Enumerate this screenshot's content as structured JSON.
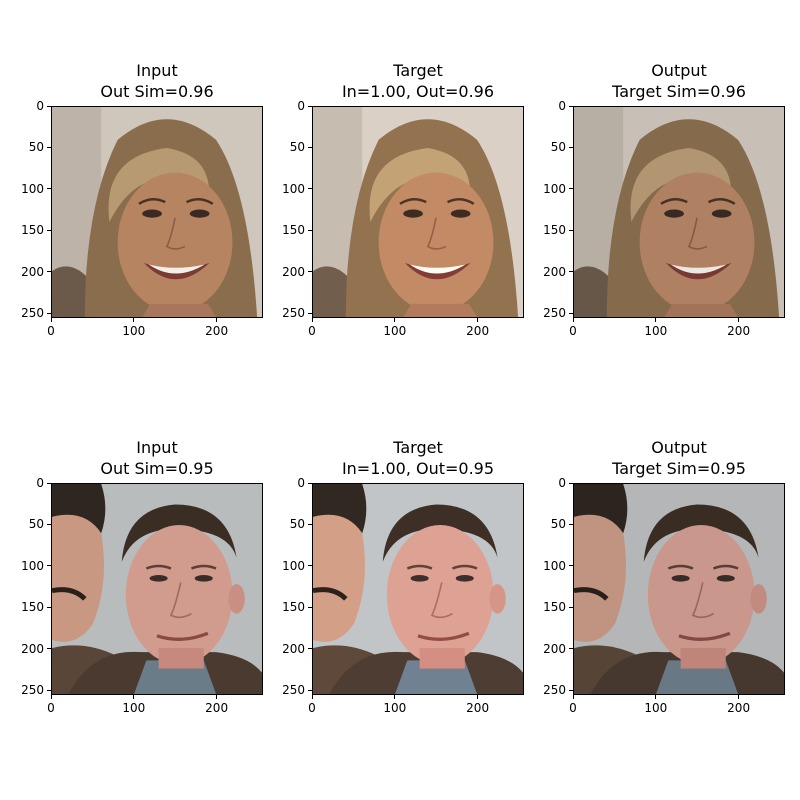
{
  "figure": {
    "panels": [
      {
        "title_line1": "Input",
        "title_line2": "Out Sim=0.96",
        "scene": "face-woman-smiling",
        "tone": "input"
      },
      {
        "title_line1": "Target",
        "title_line2": "In=1.00, Out=0.96",
        "scene": "face-woman-smiling",
        "tone": "target"
      },
      {
        "title_line1": "Output",
        "title_line2": "Target Sim=0.96",
        "scene": "face-woman-smiling",
        "tone": "output"
      },
      {
        "title_line1": "Input",
        "title_line2": "Out Sim=0.95",
        "scene": "face-man-with-friend",
        "tone": "input"
      },
      {
        "title_line1": "Target",
        "title_line2": "In=1.00, Out=0.95",
        "scene": "face-man-with-friend",
        "tone": "target"
      },
      {
        "title_line1": "Output",
        "title_line2": "Target Sim=0.95",
        "scene": "face-man-with-friend",
        "tone": "output"
      }
    ]
  },
  "chart_data": {
    "type": "image-grid",
    "rows": 2,
    "cols": 3,
    "x_ticks": [
      "0",
      "100",
      "200"
    ],
    "y_ticks": [
      "0",
      "50",
      "100",
      "150",
      "200",
      "250"
    ],
    "x_tick_values": [
      0,
      100,
      200
    ],
    "y_tick_values": [
      0,
      50,
      100,
      150,
      200,
      250
    ],
    "xlim": [
      0,
      256
    ],
    "ylim": [
      256,
      0
    ],
    "similarities": [
      {
        "row": 1,
        "input_out_sim": 0.96,
        "target_in": 1.0,
        "target_out": 0.96,
        "output_target_sim": 0.96
      },
      {
        "row": 2,
        "input_out_sim": 0.95,
        "target_in": 1.0,
        "target_out": 0.95,
        "output_target_sim": 0.95
      }
    ]
  }
}
